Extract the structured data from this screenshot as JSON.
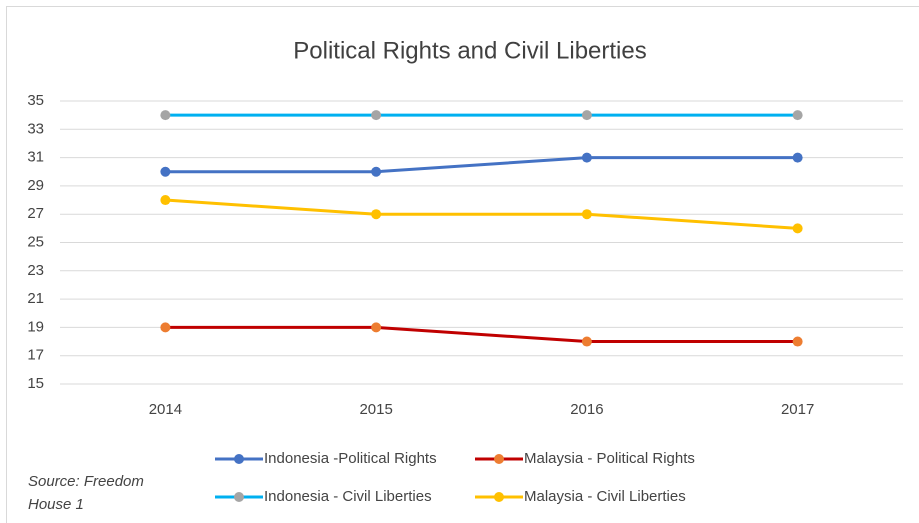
{
  "chart_data": {
    "type": "line",
    "title": "Political Rights and Civil Liberties",
    "categories": [
      "2014",
      "2015",
      "2016",
      "2017"
    ],
    "series": [
      {
        "name": "Indonesia -Political Rights",
        "color": "#4472c4",
        "marker_color": "#4472c4",
        "values": [
          30,
          30,
          31,
          31
        ]
      },
      {
        "name": "Malaysia - Political Rights",
        "color": "#c00000",
        "marker_color": "#ed7d31",
        "values": [
          19,
          19,
          18,
          18
        ]
      },
      {
        "name": "Indonesia - Civil Liberties",
        "color": "#00b0f0",
        "marker_color": "#a5a5a5",
        "values": [
          34,
          34,
          34,
          34
        ]
      },
      {
        "name": "Malaysia - Civil Liberties",
        "color": "#ffc000",
        "marker_color": "#ffc000",
        "values": [
          28,
          27,
          27,
          26
        ]
      }
    ],
    "ylim": [
      15,
      35
    ],
    "yticks": [
      15,
      17,
      19,
      21,
      23,
      25,
      27,
      29,
      31,
      33,
      35
    ],
    "grid": true,
    "legend": "bottom",
    "source": "Source: Freedom House 1"
  }
}
